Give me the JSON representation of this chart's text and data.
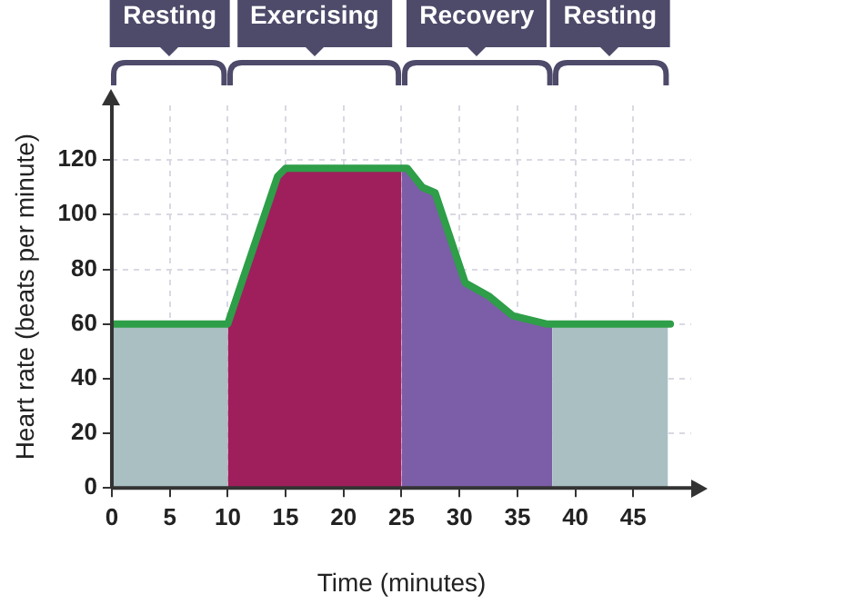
{
  "chart_data": {
    "type": "area",
    "xlabel": "Time (minutes)",
    "ylabel": "Heart rate (beats per minute)",
    "xlim": [
      0,
      50
    ],
    "ylim": [
      0,
      140
    ],
    "xticks": [
      0,
      5,
      10,
      15,
      20,
      25,
      30,
      35,
      40,
      45
    ],
    "yticks": [
      0,
      20,
      40,
      60,
      80,
      100,
      120
    ],
    "grid": true,
    "legend": false,
    "marker": "none",
    "annotations": [
      "Resting",
      "Exercising",
      "Recovery",
      "Resting"
    ],
    "series": [
      {
        "color": "#a9bfc2",
        "x": [
          0,
          10
        ],
        "values": [
          60,
          60
        ]
      },
      {
        "color": "#9e1f5c",
        "x": [
          10,
          14.3,
          15,
          25
        ],
        "values": [
          60,
          114,
          117,
          117
        ]
      },
      {
        "color": "#7b5ea7",
        "x": [
          25,
          25.5,
          26.8,
          27.9,
          30.5,
          32.6,
          34.6,
          37.5,
          38
        ],
        "values": [
          117,
          117,
          110,
          108,
          75,
          70,
          63,
          60,
          60
        ]
      },
      {
        "color": "#a9bfc2",
        "x": [
          38,
          48
        ],
        "values": [
          60,
          60
        ]
      },
      {
        "type": "line",
        "color": "#2e9e48",
        "x": [
          0,
          10,
          14.3,
          15,
          25.5,
          26.8,
          27.9,
          30.5,
          32.6,
          34.6,
          37.5,
          48.2
        ],
        "values": [
          60,
          60,
          114,
          117,
          117,
          110,
          108,
          75,
          70,
          63,
          60,
          60
        ]
      }
    ]
  }
}
